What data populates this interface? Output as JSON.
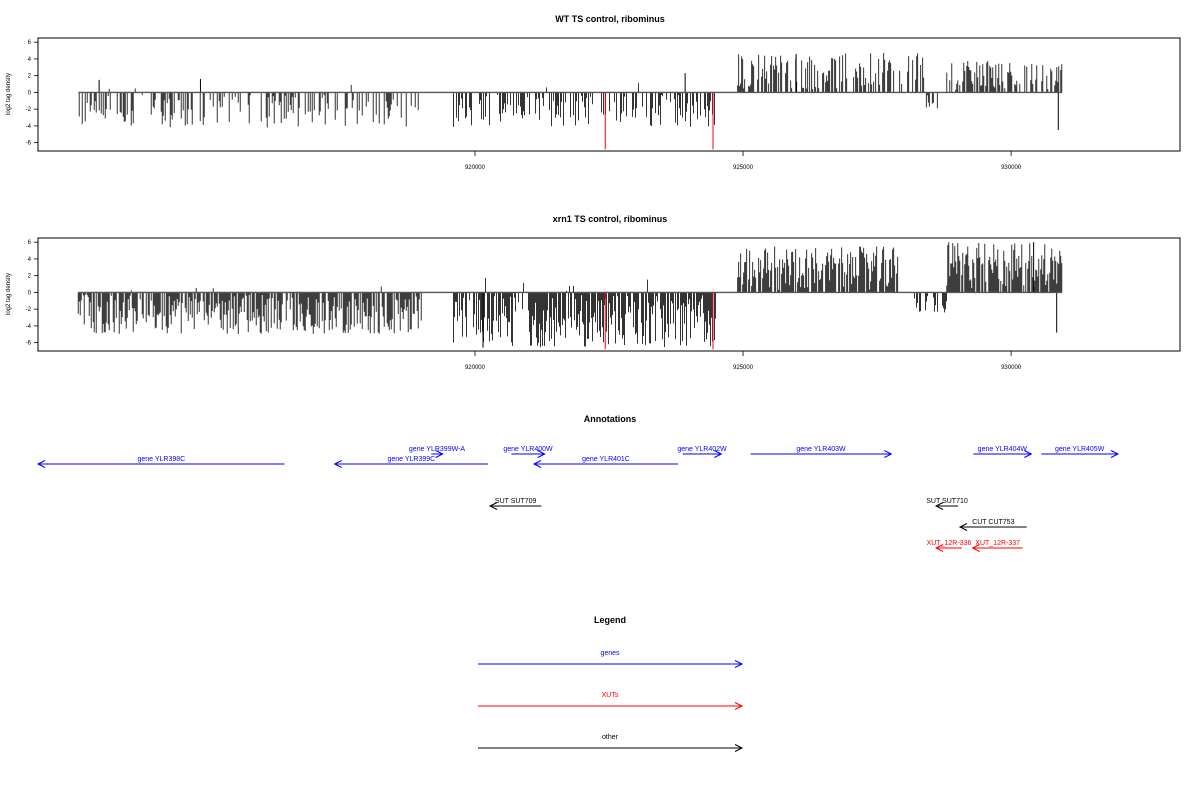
{
  "chart_data": [
    {
      "type": "bar",
      "title": "WT TS control, ribominus",
      "xlabel": "",
      "ylabel": "log2 tag density",
      "xlim": [
        911850,
        933150
      ],
      "ylim": [
        -7,
        6.5
      ],
      "xticks": [
        920000,
        925000,
        930000
      ],
      "xtick_labels": [
        "920000",
        "925000",
        "930000"
      ],
      "yticks": [
        6,
        4,
        2,
        0,
        -2,
        -4,
        -6
      ],
      "ytick_labels": [
        "6",
        "4",
        "2",
        "0",
        "-2",
        "-4",
        "-6"
      ],
      "grid": false,
      "baseline_extent": [
        912600,
        930950
      ],
      "segments": [
        {
          "start": 912600,
          "end": 919000,
          "min": -4.2,
          "max": 1.5,
          "sign": "neg",
          "density": 0.45
        },
        {
          "start": 919600,
          "end": 924500,
          "min": -4.2,
          "max": 2.0,
          "sign": "neg",
          "density": 0.45
        },
        {
          "start": 924900,
          "end": 928400,
          "min": 0,
          "max": 4.7,
          "sign": "pos",
          "density": 0.55
        },
        {
          "start": 928400,
          "end": 928800,
          "min": -2.2,
          "max": 0,
          "sign": "neg",
          "density": 0.4
        },
        {
          "start": 928800,
          "end": 930950,
          "min": 0,
          "max": 3.8,
          "sign": "pos",
          "density": 0.5
        }
      ],
      "spikes": [
        {
          "x": 912990,
          "y": 1.5
        },
        {
          "x": 914880,
          "y": 1.6
        },
        {
          "x": 923920,
          "y": 2.3
        },
        {
          "x": 925990,
          "y": 4.6
        },
        {
          "x": 930880,
          "y": -4.5
        }
      ],
      "highlight_lines": [
        {
          "x": 922430,
          "y": -6.8,
          "color": "#ff0000"
        },
        {
          "x": 924440,
          "y": -6.8,
          "color": "#ff0000"
        }
      ]
    },
    {
      "type": "bar",
      "title": "xrn1 TS control, ribominus",
      "xlabel": "",
      "ylabel": "log2 tag density",
      "xlim": [
        911850,
        933150
      ],
      "ylim": [
        -7,
        6.5
      ],
      "xticks": [
        920000,
        925000,
        930000
      ],
      "xtick_labels": [
        "920000",
        "925000",
        "930000"
      ],
      "yticks": [
        6,
        4,
        2,
        0,
        -2,
        -4,
        -6
      ],
      "ytick_labels": [
        "6",
        "4",
        "2",
        "0",
        "-2",
        "-4",
        "-6"
      ],
      "grid": false,
      "baseline_extent": [
        912600,
        930950
      ],
      "segments": [
        {
          "start": 912600,
          "end": 919000,
          "min": -5.0,
          "max": 0.8,
          "sign": "neg",
          "density": 0.8
        },
        {
          "start": 919600,
          "end": 924500,
          "min": -6.6,
          "max": 1.8,
          "sign": "neg",
          "density": 0.8
        },
        {
          "start": 924900,
          "end": 927900,
          "min": 0,
          "max": 5.5,
          "sign": "pos",
          "density": 0.85
        },
        {
          "start": 928200,
          "end": 928800,
          "min": -2.5,
          "max": 0,
          "sign": "neg",
          "density": 0.4
        },
        {
          "start": 928800,
          "end": 930950,
          "min": 0,
          "max": 6.0,
          "sign": "pos",
          "density": 0.85
        }
      ],
      "spikes": [
        {
          "x": 920150,
          "y": -6.6
        },
        {
          "x": 930420,
          "y": 6.0
        },
        {
          "x": 930850,
          "y": -4.8
        }
      ],
      "highlight_lines": [
        {
          "x": 922430,
          "y": -6.8,
          "color": "#ff0000"
        },
        {
          "x": 924440,
          "y": -6.8,
          "color": "#ff0000"
        }
      ]
    }
  ],
  "annotations": {
    "title": "Annotations",
    "genes_color": "#0000ff",
    "xut_color": "#ff0000",
    "other_color": "#000000",
    "items": [
      {
        "label": "gene YLR398C",
        "start": 911850,
        "end": 915550,
        "dir": "left",
        "kind": "gene",
        "row": 2
      },
      {
        "label": "gene YLR399C",
        "start": 916300,
        "end": 918600,
        "dir": "left",
        "kind": "gene",
        "row": 2
      },
      {
        "label": "gene YLR399W-A",
        "start": 917750,
        "end": 917920,
        "dir": "right",
        "kind": "gene",
        "row": 1
      },
      {
        "label": "gene YLR400W",
        "start": 918950,
        "end": 919450,
        "dir": "right",
        "kind": "gene",
        "row": 1
      },
      {
        "label": "gene YLR401C",
        "start": 919290,
        "end": 921450,
        "dir": "left",
        "kind": "gene",
        "row": 2
      },
      {
        "label": "gene YLR402W",
        "start": 921520,
        "end": 922100,
        "dir": "right",
        "kind": "gene",
        "row": 1
      },
      {
        "label": "gene YLR403W",
        "start": 922540,
        "end": 924650,
        "dir": "right",
        "kind": "gene",
        "row": 1
      },
      {
        "label": "gene YLR404W",
        "start": 925880,
        "end": 926750,
        "dir": "right",
        "kind": "gene",
        "row": 1
      },
      {
        "label": "gene YLR405W",
        "start": 926900,
        "end": 928050,
        "dir": "right",
        "kind": "gene",
        "row": 1
      },
      {
        "label": "SUT SUT709",
        "start": 918630,
        "end": 919400,
        "dir": "left",
        "kind": "other",
        "row": 4
      },
      {
        "label": "SUT SUT710",
        "start": 925320,
        "end": 925650,
        "dir": "left",
        "kind": "other",
        "row": 4
      },
      {
        "label": "CUT CUT753",
        "start": 925680,
        "end": 926680,
        "dir": "left",
        "kind": "other",
        "row": 5
      },
      {
        "label": "XUT_12R-336",
        "start": 925320,
        "end": 925710,
        "dir": "left",
        "kind": "xut",
        "row": 6
      },
      {
        "label": "XUT_12R-337",
        "start": 925870,
        "end": 926620,
        "dir": "left",
        "kind": "xut",
        "row": 6
      }
    ]
  },
  "legend": {
    "title": "Legend",
    "items": [
      {
        "label": "genes",
        "color": "#0000ff"
      },
      {
        "label": "XUTs",
        "color": "#ff0000"
      },
      {
        "label": "other",
        "color": "#000000"
      }
    ]
  }
}
